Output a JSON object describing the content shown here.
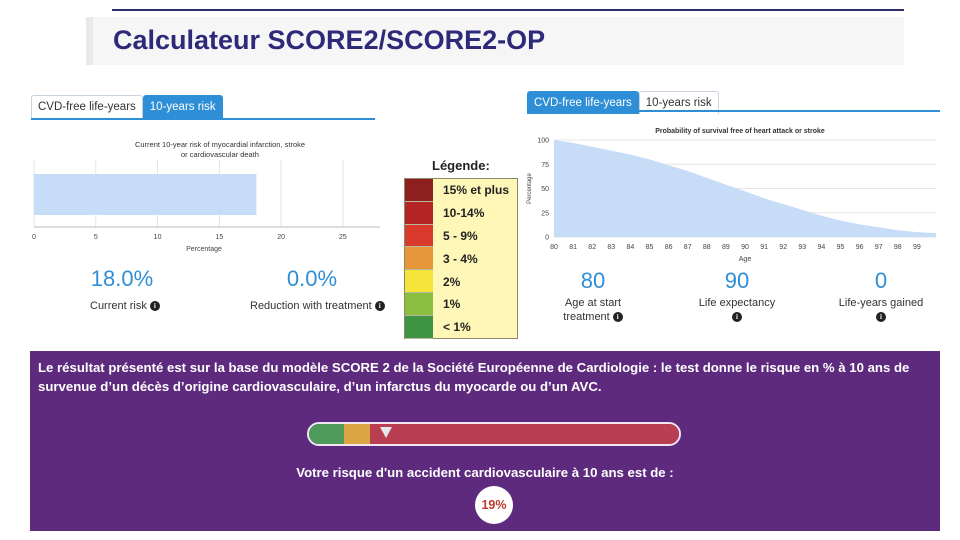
{
  "title": "Calculateur SCORE2/SCORE2-OP",
  "left_widget": {
    "tabs": [
      {
        "label": "CVD-free life-years",
        "active": false
      },
      {
        "label": "10-years risk",
        "active": true
      }
    ],
    "chart_title_line1": "Current 10-year risk of myocardial infarction, stroke",
    "chart_title_line2": "or cardiovascular death",
    "current_risk_value": "18.0%",
    "current_risk_label": "Current risk",
    "reduction_value": "0.0%",
    "reduction_label": "Reduction with treatment"
  },
  "right_widget": {
    "tabs": [
      {
        "label": "CVD-free life-years",
        "active": true
      },
      {
        "label": "10-years risk",
        "active": false
      }
    ],
    "age_start_value": "80",
    "age_start_label_line1": "Age at start",
    "age_start_label_line2": "treatment",
    "life_expectancy_value": "90",
    "life_expectancy_label": "Life expectancy",
    "life_years_value": "0",
    "life_years_label": "Life-years gained"
  },
  "legend": {
    "title": "Légende:",
    "items": [
      {
        "label": "15% et plus",
        "color": "#8e1f1f"
      },
      {
        "label": "10-14%",
        "color": "#b32424"
      },
      {
        "label": "5 - 9%",
        "color": "#d93a2b"
      },
      {
        "label": "3 - 4%",
        "color": "#e8963a"
      },
      {
        "label": "2%",
        "color": "#f5e43a"
      },
      {
        "label": "1%",
        "color": "#8bbd3e"
      },
      {
        "label": "< 1%",
        "color": "#3e9442"
      }
    ]
  },
  "result_panel": {
    "description": "Le résultat présenté est sur la base du modèle SCORE 2 de la Société Européenne de Cardiologie : le test donne le risque en % à 10 ans de survenue d’un décès d’origine cardiovasculaire, d’un infarctus du myocarde ou d’un AVC.",
    "risk_sentence": "Votre risque d'un accident cardiovasculaire à 10 ans est de :",
    "risk_value": "19%",
    "risk_level": 0.21,
    "bar_segments": [
      {
        "color": "#4e9a5a",
        "fraction": 0.095
      },
      {
        "color": "#dca645",
        "fraction": 0.07
      },
      {
        "color": "#b83e52",
        "fraction": 0.835
      }
    ]
  },
  "chart_data": [
    {
      "type": "bar",
      "orientation": "horizontal",
      "title": "Current 10-year risk of myocardial infarction, stroke or cardiovascular death",
      "xlabel": "Percentage",
      "xlim": [
        0,
        28
      ],
      "xticks": [
        0,
        5,
        10,
        15,
        20,
        25
      ],
      "categories": [
        ""
      ],
      "values": [
        18.0
      ],
      "color": "#c7dcf6"
    },
    {
      "type": "area",
      "title": "Probability of survival free of heart attack or stroke",
      "xlabel": "Age",
      "ylabel": "Percentage",
      "xlim": [
        80,
        100
      ],
      "ylim": [
        0,
        100
      ],
      "xticks": [
        80,
        81,
        82,
        83,
        84,
        85,
        86,
        87,
        88,
        89,
        90,
        91,
        92,
        93,
        94,
        95,
        96,
        97,
        98,
        99
      ],
      "yticks": [
        0,
        25,
        50,
        75,
        100
      ],
      "x": [
        80,
        81,
        82,
        83,
        84,
        85,
        86,
        87,
        88,
        89,
        90,
        91,
        92,
        93,
        94,
        95,
        96,
        97,
        98,
        99,
        100
      ],
      "values": [
        100,
        97,
        93,
        89,
        85,
        80,
        74,
        68,
        61,
        54,
        47,
        40,
        34,
        28,
        22,
        17,
        13,
        10,
        7,
        5,
        4
      ],
      "color": "#c7dcf6"
    }
  ]
}
